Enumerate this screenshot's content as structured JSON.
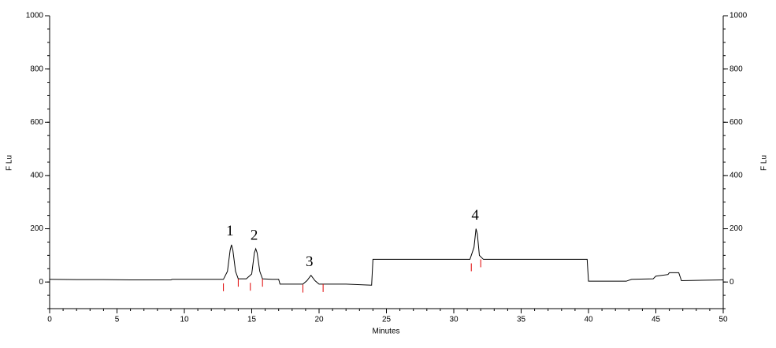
{
  "chart_data": {
    "type": "line",
    "xlabel": "Minutes",
    "ylabel": "F Lu",
    "y2label": "F Lu",
    "x": [
      0,
      2,
      4,
      6,
      8,
      9,
      9.1,
      12,
      12.9,
      13.2,
      13.4,
      13.5,
      13.6,
      13.8,
      14.0,
      14.6,
      15.0,
      15.2,
      15.3,
      15.4,
      15.6,
      15.8,
      16.5,
      17.0,
      17.1,
      18.8,
      19.1,
      19.4,
      19.7,
      20.0,
      22,
      23.9,
      24.0,
      31.2,
      31.5,
      31.65,
      31.75,
      31.9,
      32.2,
      39.9,
      40.0,
      42.8,
      43.2,
      44.8,
      45.0,
      45.9,
      46.0,
      46.7,
      46.9,
      50
    ],
    "series": [
      {
        "color": "#000000",
        "values": [
          10,
          9,
          9,
          8,
          8,
          8,
          10,
          10,
          10,
          40,
          120,
          140,
          120,
          40,
          12,
          12,
          30,
          110,
          125,
          110,
          40,
          12,
          10,
          10,
          -8,
          -8,
          5,
          25,
          5,
          -8,
          -8,
          -12,
          85,
          85,
          130,
          200,
          180,
          100,
          85,
          85,
          3,
          3,
          10,
          12,
          22,
          28,
          35,
          35,
          5,
          8
        ]
      }
    ],
    "markers": {
      "color": "#e00000",
      "x": [
        12.9,
        14.0,
        14.9,
        15.8,
        18.8,
        20.3,
        31.3,
        32.0
      ],
      "y": [
        -5,
        12,
        -3,
        12,
        -10,
        -8,
        70,
        85
      ]
    },
    "annotations": [
      {
        "text": "1",
        "x": 13.5,
        "y": 140
      },
      {
        "text": "2",
        "x": 15.3,
        "y": 125
      },
      {
        "text": "3",
        "x": 19.4,
        "y": 25
      },
      {
        "text": "4",
        "x": 31.7,
        "y": 200
      }
    ],
    "xlim": [
      0,
      50
    ],
    "xticks": [
      0,
      5,
      10,
      15,
      20,
      25,
      30,
      35,
      40,
      45,
      50
    ],
    "ylim": [
      -100,
      1000
    ],
    "yticks": [
      0,
      200,
      400,
      600,
      800,
      1000
    ],
    "y2lim": [
      -100,
      1000
    ],
    "y2ticks": [
      0,
      200,
      400,
      600,
      800,
      1000
    ]
  }
}
